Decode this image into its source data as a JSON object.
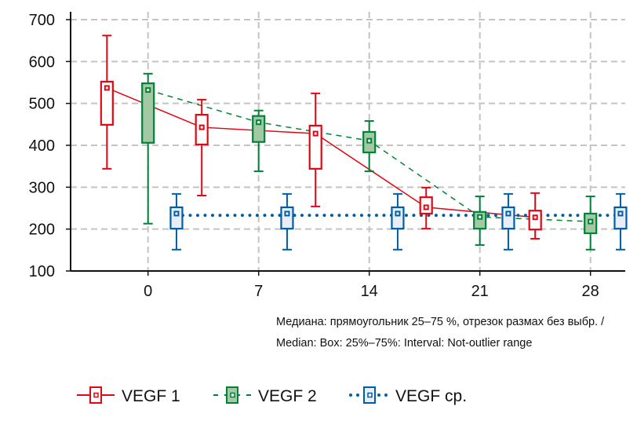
{
  "chart_data": {
    "type": "box",
    "xlim": [
      -4.9,
      30.2
    ],
    "ylim": [
      100,
      700
    ],
    "x_ticks": [
      0,
      7,
      14,
      21,
      28
    ],
    "y_ticks": [
      100,
      200,
      300,
      400,
      500,
      600,
      700
    ],
    "grid": true,
    "legend_position": "bottom-left",
    "note_line1": "Медиана: прямоугольник 25–75 %, отрезок размах без выбр. /",
    "note_line2": "Median: Box: 25%–75%: Interval: Not-outlier range",
    "series": [
      {
        "name": "VEGF 1",
        "color": "#e30613",
        "fill": "#ffffff",
        "line_style": "solid",
        "boxes": [
          {
            "x": -2.6,
            "min": 344,
            "q1": 449,
            "median": 537,
            "q3": 552,
            "max": 662
          },
          {
            "x": 3.4,
            "min": 280,
            "q1": 402,
            "median": 443,
            "q3": 473,
            "max": 509
          },
          {
            "x": 10.6,
            "min": 254,
            "q1": 344,
            "median": 428,
            "q3": 447,
            "max": 524
          },
          {
            "x": 17.6,
            "min": 201,
            "q1": 237,
            "median": 252,
            "q3": 276,
            "max": 299
          },
          {
            "x": 24.5,
            "min": 177,
            "q1": 199,
            "median": 228,
            "q3": 244,
            "max": 286
          }
        ]
      },
      {
        "name": "VEGF 2",
        "color": "#008237",
        "fill": "#a2c9a4",
        "line_style": "dashed",
        "boxes": [
          {
            "x": 0,
            "min": 213,
            "q1": 406,
            "median": 532,
            "q3": 548,
            "max": 571
          },
          {
            "x": 7,
            "min": 338,
            "q1": 408,
            "median": 455,
            "q3": 470,
            "max": 483
          },
          {
            "x": 14,
            "min": 338,
            "q1": 383,
            "median": 411,
            "q3": 432,
            "max": 458
          },
          {
            "x": 21,
            "min": 162,
            "q1": 201,
            "median": 229,
            "q3": 241,
            "max": 278
          },
          {
            "x": 28,
            "min": 151,
            "q1": 190,
            "median": 218,
            "q3": 237,
            "max": 278
          }
        ]
      },
      {
        "name": "VEGF ср.",
        "color": "#005ea8",
        "fill": "#e8edf8",
        "line_style": "dotted",
        "reference_line": 233,
        "boxes": [
          {
            "x": 1.8,
            "min": 151,
            "q1": 201,
            "median": 237,
            "q3": 252,
            "max": 284
          },
          {
            "x": 8.8,
            "min": 151,
            "q1": 201,
            "median": 237,
            "q3": 252,
            "max": 284
          },
          {
            "x": 15.8,
            "min": 151,
            "q1": 201,
            "median": 237,
            "q3": 252,
            "max": 284
          },
          {
            "x": 22.8,
            "min": 151,
            "q1": 201,
            "median": 237,
            "q3": 252,
            "max": 284
          },
          {
            "x": 29.9,
            "min": 151,
            "q1": 201,
            "median": 237,
            "q3": 252,
            "max": 284
          }
        ]
      }
    ]
  }
}
